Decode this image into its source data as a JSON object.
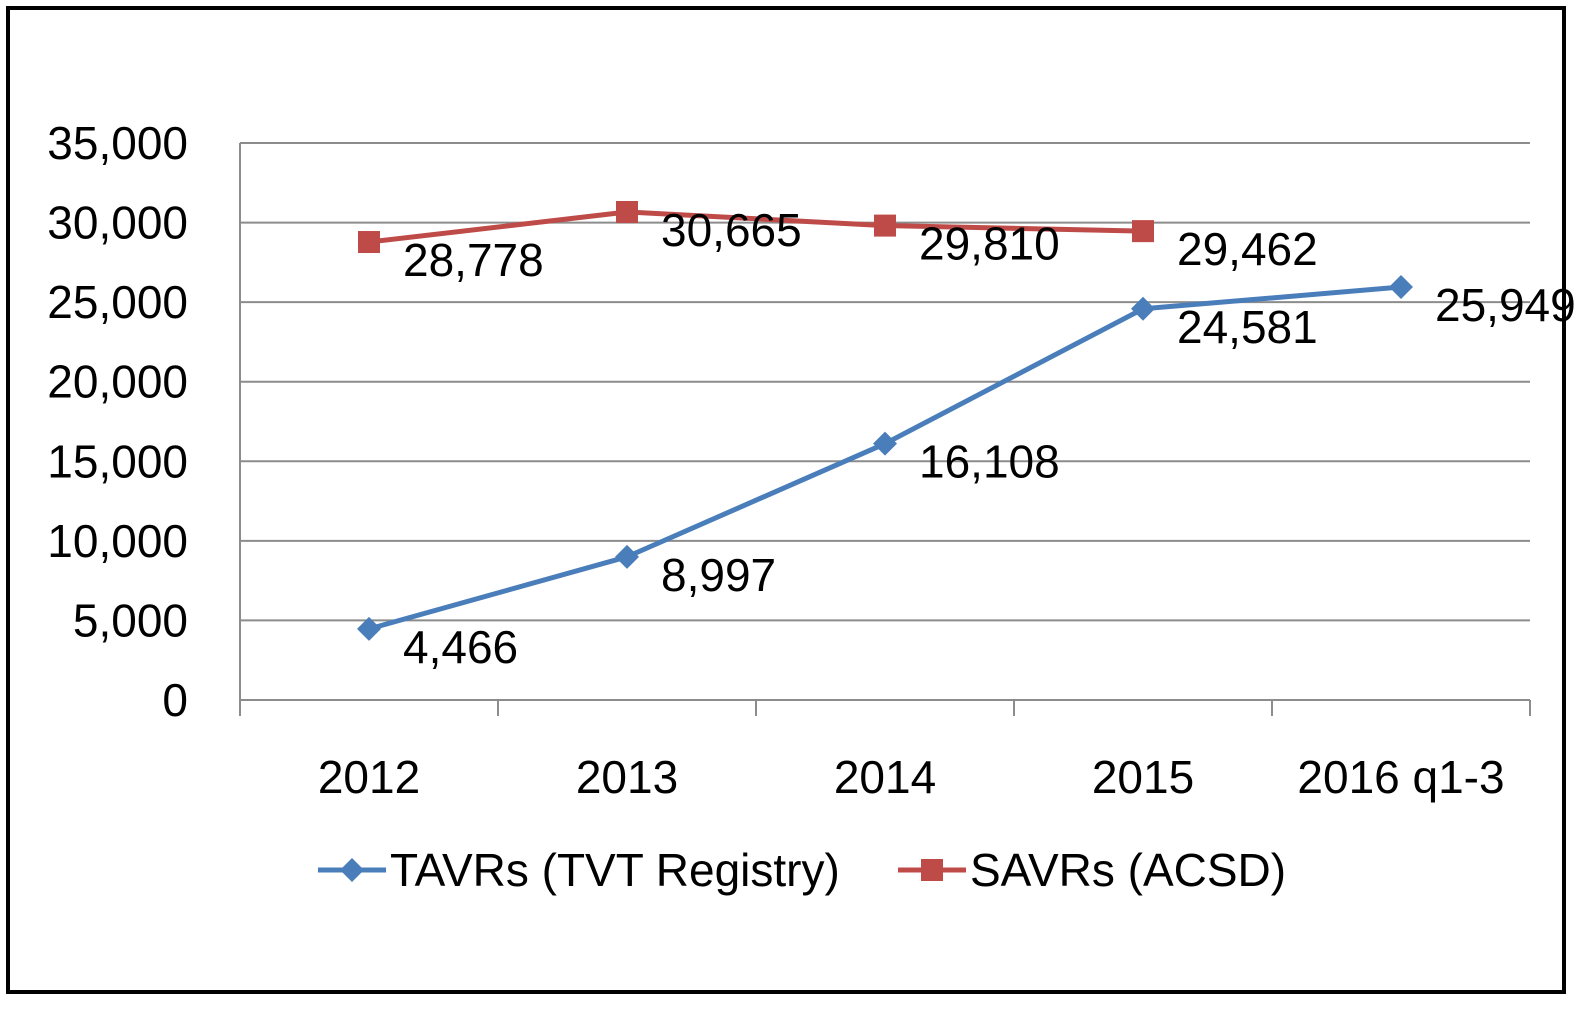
{
  "chart_data": {
    "type": "line",
    "title": "",
    "xlabel": "",
    "ylabel": "",
    "categories": [
      "2012",
      "2013",
      "2014",
      "2015",
      "2016 q1-3"
    ],
    "ylim": [
      0,
      35000
    ],
    "yticks": [
      0,
      5000,
      10000,
      15000,
      20000,
      25000,
      30000,
      35000
    ],
    "ytick_labels": [
      "0",
      "5,000",
      "10,000",
      "15,000",
      "20,000",
      "25,000",
      "30,000",
      "35,000"
    ],
    "grid": true,
    "legend_position": "bottom",
    "series": [
      {
        "name": "TAVRs (TVT Registry)",
        "color": "#4a7ebb",
        "marker": "diamond",
        "values": [
          4466,
          8997,
          16108,
          24581,
          25949
        ],
        "labels": [
          "4,466",
          "8,997",
          "16,108",
          "24,581",
          "25,949"
        ]
      },
      {
        "name": "SAVRs (ACSD)",
        "color": "#be4b48",
        "marker": "square",
        "values": [
          28778,
          30665,
          29810,
          29462,
          null
        ],
        "labels": [
          "28,778",
          "30,665",
          "29,810",
          "29,462",
          null
        ]
      }
    ]
  }
}
